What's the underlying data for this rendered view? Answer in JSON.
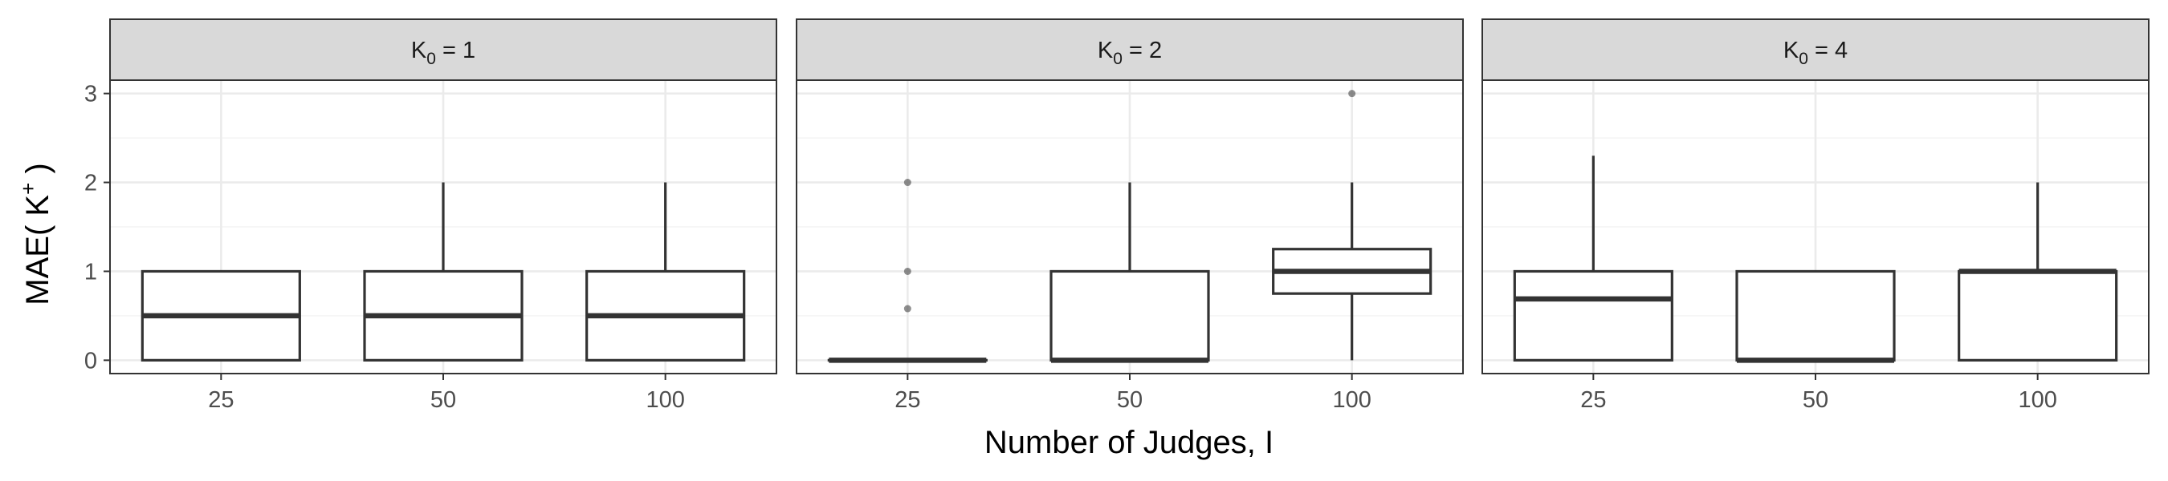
{
  "chart_data": {
    "type": "boxplot",
    "xlabel": "Number of Judges, I",
    "ylabel": {
      "base": "MAE( K",
      "sup": "+",
      "close": " )"
    },
    "ylim": [
      -0.15,
      3.15
    ],
    "yticks": [
      0,
      1,
      2,
      3
    ],
    "categories": [
      "25",
      "50",
      "100"
    ],
    "colors": {
      "strip": "#d9d9d9",
      "box_line": "#333333",
      "grid": "#ebebeb"
    },
    "panels": [
      {
        "strip": {
          "prefix": "K",
          "sub": "0",
          "suffix": " = 1"
        },
        "boxes": [
          {
            "category": "25",
            "min": 0,
            "q1": 0,
            "median": 0.5,
            "q3": 1,
            "max": 1,
            "outliers": []
          },
          {
            "category": "50",
            "min": 0,
            "q1": 0,
            "median": 0.5,
            "q3": 1,
            "max": 2,
            "outliers": []
          },
          {
            "category": "100",
            "min": 0,
            "q1": 0,
            "median": 0.5,
            "q3": 1,
            "max": 2,
            "outliers": []
          }
        ]
      },
      {
        "strip": {
          "prefix": "K",
          "sub": "0",
          "suffix": " = 2"
        },
        "boxes": [
          {
            "category": "25",
            "min": 0,
            "q1": 0,
            "median": 0,
            "q3": 0,
            "max": 0,
            "outliers": [
              0.58,
              1,
              2
            ]
          },
          {
            "category": "50",
            "min": 0,
            "q1": 0,
            "median": 0,
            "q3": 1,
            "max": 2,
            "outliers": []
          },
          {
            "category": "100",
            "min": 0,
            "q1": 0.75,
            "median": 1,
            "q3": 1.25,
            "max": 2,
            "outliers": [
              3
            ]
          }
        ]
      },
      {
        "strip": {
          "prefix": "K",
          "sub": "0",
          "suffix": " = 4"
        },
        "boxes": [
          {
            "category": "25",
            "min": 0,
            "q1": 0,
            "median": 0.69,
            "q3": 1,
            "max": 2.3,
            "outliers": []
          },
          {
            "category": "50",
            "min": 0,
            "q1": 0,
            "median": 0,
            "q3": 1,
            "max": 1,
            "outliers": []
          },
          {
            "category": "100",
            "min": 0,
            "q1": 0,
            "median": 1,
            "q3": 1,
            "max": 2,
            "outliers": []
          }
        ]
      }
    ]
  }
}
